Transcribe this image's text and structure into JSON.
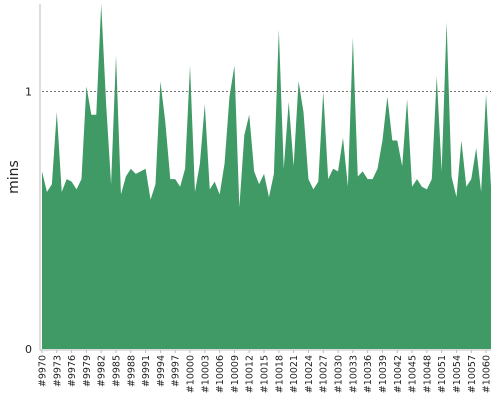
{
  "chart_data": {
    "type": "area",
    "title": "",
    "xlabel": "",
    "ylabel": "mins",
    "ylim": [
      0,
      1.34
    ],
    "y_ticks": [
      0,
      1
    ],
    "reference_line": 1,
    "grid": false,
    "colors": {
      "fill": "#3f9a66",
      "reference": "#777777",
      "axis": "#bbbbbb"
    },
    "x_ticks": [
      "#9970",
      "#9973",
      "#9976",
      "#9979",
      "#9982",
      "#9985",
      "#9988",
      "#9991",
      "#9994",
      "#9997",
      "#10000",
      "#10003",
      "#10006",
      "#10009",
      "#10012",
      "#10015",
      "#10018",
      "#10021",
      "#10024",
      "#10027",
      "#10030",
      "#10033",
      "#10036",
      "#10039",
      "#10042",
      "#10045",
      "#10048",
      "#10051",
      "#10054",
      "#10057",
      "#10060"
    ],
    "x": [
      9970,
      9971,
      9972,
      9973,
      9974,
      9975,
      9976,
      9977,
      9978,
      9979,
      9980,
      9981,
      9982,
      9983,
      9984,
      9985,
      9986,
      9987,
      9988,
      9989,
      9990,
      9991,
      9992,
      9993,
      9994,
      9995,
      9996,
      9997,
      9998,
      9999,
      10000,
      10001,
      10002,
      10003,
      10004,
      10005,
      10006,
      10007,
      10008,
      10009,
      10010,
      10011,
      10012,
      10013,
      10014,
      10015,
      10016,
      10017,
      10018,
      10019,
      10020,
      10021,
      10022,
      10023,
      10024,
      10025,
      10026,
      10027,
      10028,
      10029,
      10030,
      10031,
      10032,
      10033,
      10034,
      10035,
      10036,
      10037,
      10038,
      10039,
      10040,
      10041,
      10042,
      10043,
      10044,
      10045,
      10046,
      10047,
      10048,
      10049,
      10050,
      10051,
      10052,
      10053,
      10054,
      10055,
      10056,
      10057,
      10058,
      10059,
      10060,
      10061
    ],
    "values": [
      0.69,
      0.61,
      0.64,
      0.92,
      0.61,
      0.66,
      0.65,
      0.62,
      0.66,
      1.02,
      0.91,
      0.91,
      1.34,
      0.95,
      0.64,
      1.14,
      0.6,
      0.67,
      0.7,
      0.68,
      0.69,
      0.7,
      0.58,
      0.64,
      1.04,
      0.88,
      0.66,
      0.66,
      0.63,
      0.7,
      1.1,
      0.61,
      0.72,
      0.95,
      0.62,
      0.65,
      0.6,
      0.72,
      0.98,
      1.1,
      0.55,
      0.83,
      0.91,
      0.69,
      0.64,
      0.68,
      0.59,
      0.68,
      1.24,
      0.7,
      0.96,
      0.71,
      1.04,
      0.92,
      0.66,
      0.62,
      0.65,
      1.0,
      0.66,
      0.7,
      0.69,
      0.82,
      0.63,
      1.21,
      0.67,
      0.69,
      0.66,
      0.66,
      0.7,
      0.81,
      0.98,
      0.81,
      0.81,
      0.71,
      0.97,
      0.63,
      0.66,
      0.63,
      0.62,
      0.66,
      1.06,
      0.69,
      1.27,
      0.67,
      0.59,
      0.81,
      0.63,
      0.66,
      0.78,
      0.61,
      0.99,
      0.63
    ]
  }
}
